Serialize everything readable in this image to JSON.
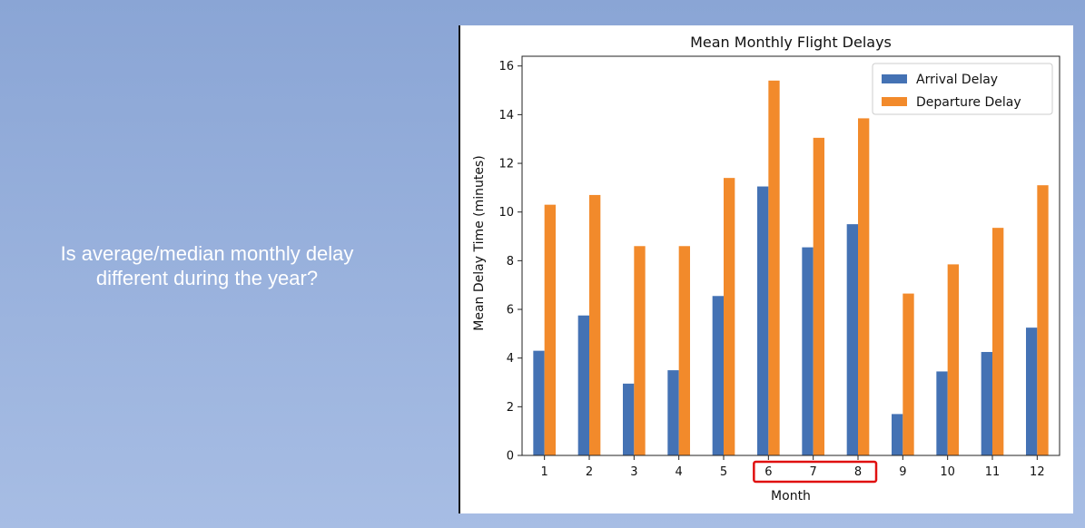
{
  "slide": {
    "question_line1": "Is average/median monthly delay",
    "question_line2": "different during the year?"
  },
  "highlight": {
    "months": [
      "6",
      "7",
      "8"
    ],
    "color": "#e01010"
  },
  "chart_data": {
    "type": "bar",
    "title": "Mean Monthly Flight Delays",
    "xlabel": "Month",
    "ylabel": "Mean Delay Time (minutes)",
    "categories": [
      "1",
      "2",
      "3",
      "4",
      "5",
      "6",
      "7",
      "8",
      "9",
      "10",
      "11",
      "12"
    ],
    "series": [
      {
        "name": "Arrival Delay",
        "color": "#4472b4",
        "values": [
          4.3,
          5.75,
          2.95,
          3.5,
          6.55,
          11.05,
          8.55,
          9.5,
          1.7,
          3.45,
          4.25,
          5.25
        ]
      },
      {
        "name": "Departure Delay",
        "color": "#f28a2b",
        "values": [
          10.3,
          10.7,
          8.6,
          8.6,
          11.4,
          15.4,
          13.05,
          13.85,
          6.65,
          7.85,
          9.35,
          11.1
        ]
      }
    ],
    "yticks": [
      0,
      2,
      4,
      6,
      8,
      10,
      12,
      14,
      16
    ],
    "ylim": [
      0,
      16.4
    ],
    "grid": false,
    "legend_position": "top-right"
  }
}
